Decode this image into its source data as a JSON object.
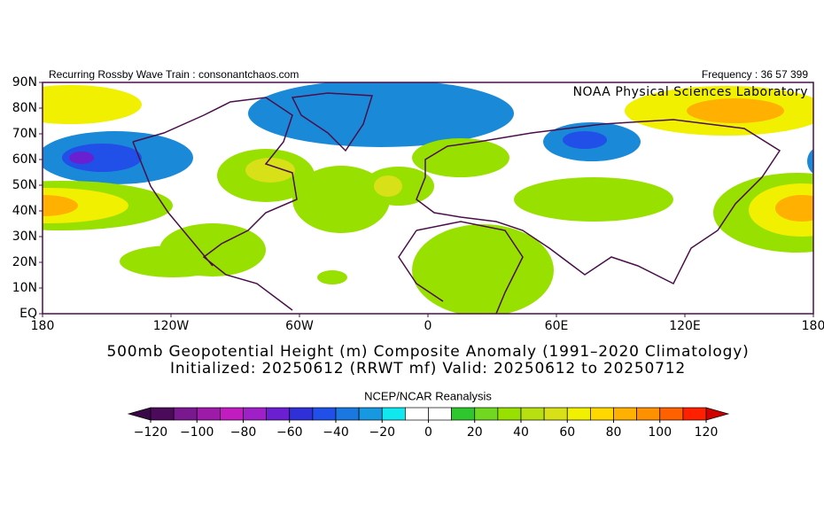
{
  "header": {
    "left": "Recurring Rossby Wave Train : consonantchaos.com",
    "right": "Frequency : 36 57 399",
    "lab": "NOAA Physical Sciences Laboratory"
  },
  "map": {
    "lat_labels": [
      "90N",
      "80N",
      "70N",
      "60N",
      "50N",
      "40N",
      "30N",
      "20N",
      "10N",
      "EQ"
    ],
    "lon_labels": [
      "180",
      "120W",
      "60W",
      "0",
      "60E",
      "120E",
      "180"
    ]
  },
  "title": {
    "line1": "500mb Geopotential Height (m) Composite Anomaly (1991–2020 Climatology)",
    "line2": "Initialized: 20250612 (RRWT mf) Valid: 20250612 to 20250712",
    "source": "NCEP/NCAR Reanalysis"
  },
  "colorbar": {
    "lim": [
      -120,
      120
    ],
    "ticks": [
      {
        "value": -120,
        "label": "−120"
      },
      {
        "value": -100,
        "label": "−100"
      },
      {
        "value": -80,
        "label": "−80"
      },
      {
        "value": -60,
        "label": "−60"
      },
      {
        "value": -40,
        "label": "−40"
      },
      {
        "value": -20,
        "label": "−20"
      },
      0,
      20,
      40,
      60,
      80,
      100,
      120
    ],
    "under": "#3a0848",
    "over": "#d00000",
    "colors": [
      "#4b0a5a",
      "#7a1890",
      "#9e1aa8",
      "#c01cc0",
      "#a020c8",
      "#6a1fd0",
      "#3030d8",
      "#2050e8",
      "#1a78e0",
      "#1898e0",
      "#10e8f0",
      "#ffffff",
      "#ffffff",
      "#2ec82e",
      "#70d820",
      "#98e000",
      "#b8e010",
      "#d8e018",
      "#f0f000",
      "#ffd800",
      "#ffb000",
      "#ff9000",
      "#ff6000",
      "#ff2000"
    ]
  }
}
